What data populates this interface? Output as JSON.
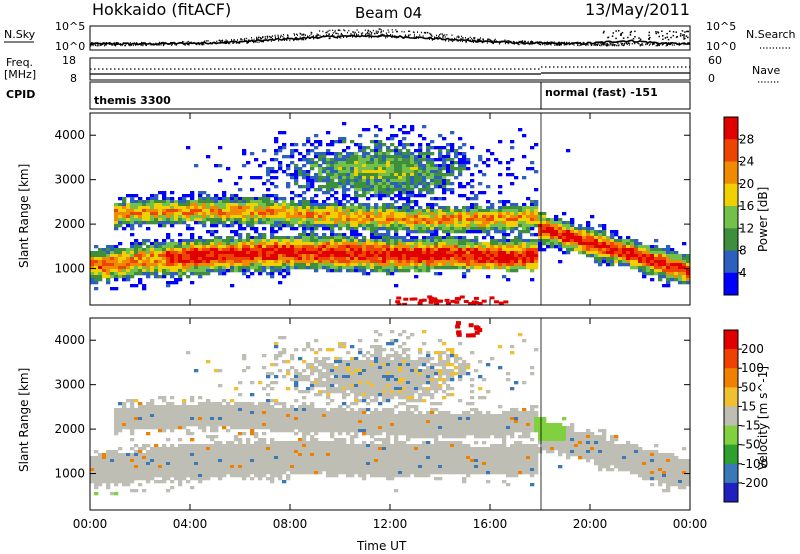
{
  "header": {
    "station": "Hokkaido (fitACF)",
    "beam": "Beam 04",
    "date": "13/May/2011"
  },
  "left_labels": {
    "nsky": "N.Sky",
    "freq_line1": "Freq.",
    "freq_line2": "[MHz]",
    "cpid": "CPID"
  },
  "right_labels": {
    "nsearch": "N.Search",
    "nave": "Nave"
  },
  "nsky_ticks": [
    "10^5",
    "10^0"
  ],
  "nsearch_ticks": [
    "10^5",
    "10^0"
  ],
  "freq_ticks": [
    "18",
    "8"
  ],
  "nave_ticks": [
    "60",
    "0"
  ],
  "cpid_segments": [
    {
      "label": "themis 3300",
      "start_hour": 0
    },
    {
      "label": "normal (fast) -151",
      "start_hour": 18
    }
  ],
  "chart_data": [
    {
      "type": "heatmap",
      "name": "power",
      "ylabel": "Slant Range [km]",
      "xlabel": "",
      "xlim": [
        0,
        24
      ],
      "ylim": [
        180,
        4500
      ],
      "yticks": [
        1000,
        2000,
        3000,
        4000
      ],
      "colorbar": {
        "label": "Power [dB]",
        "range": [
          0,
          32
        ],
        "ticks": [
          "4",
          "8",
          "12",
          "16",
          "20",
          "24",
          "28"
        ],
        "colors": [
          "#0000ff",
          "#2d5fbf",
          "#3d8f3d",
          "#73c04a",
          "#f0d000",
          "#f08a00",
          "#ef4400",
          "#e00000"
        ]
      }
    },
    {
      "type": "heatmap",
      "name": "velocity",
      "ylabel": "Slant Range [km]",
      "xlabel": "Time UT",
      "xlim": [
        0,
        24
      ],
      "ylim": [
        180,
        4500
      ],
      "yticks": [
        1000,
        2000,
        3000,
        4000
      ],
      "xticks": [
        "00:00",
        "04:00",
        "08:00",
        "12:00",
        "16:00",
        "20:00",
        "00:00"
      ],
      "colorbar": {
        "label": "Velocity [m s^-1]",
        "ticks": [
          "200",
          "100",
          "50",
          "15",
          "-15",
          "-50",
          "-100",
          "-200"
        ],
        "colors": [
          "#2020c0",
          "#3a78b8",
          "#2ea02e",
          "#80d040",
          "#bebeb4",
          "#f0c030",
          "#f08000",
          "#f04000",
          "#e00000"
        ]
      }
    }
  ]
}
